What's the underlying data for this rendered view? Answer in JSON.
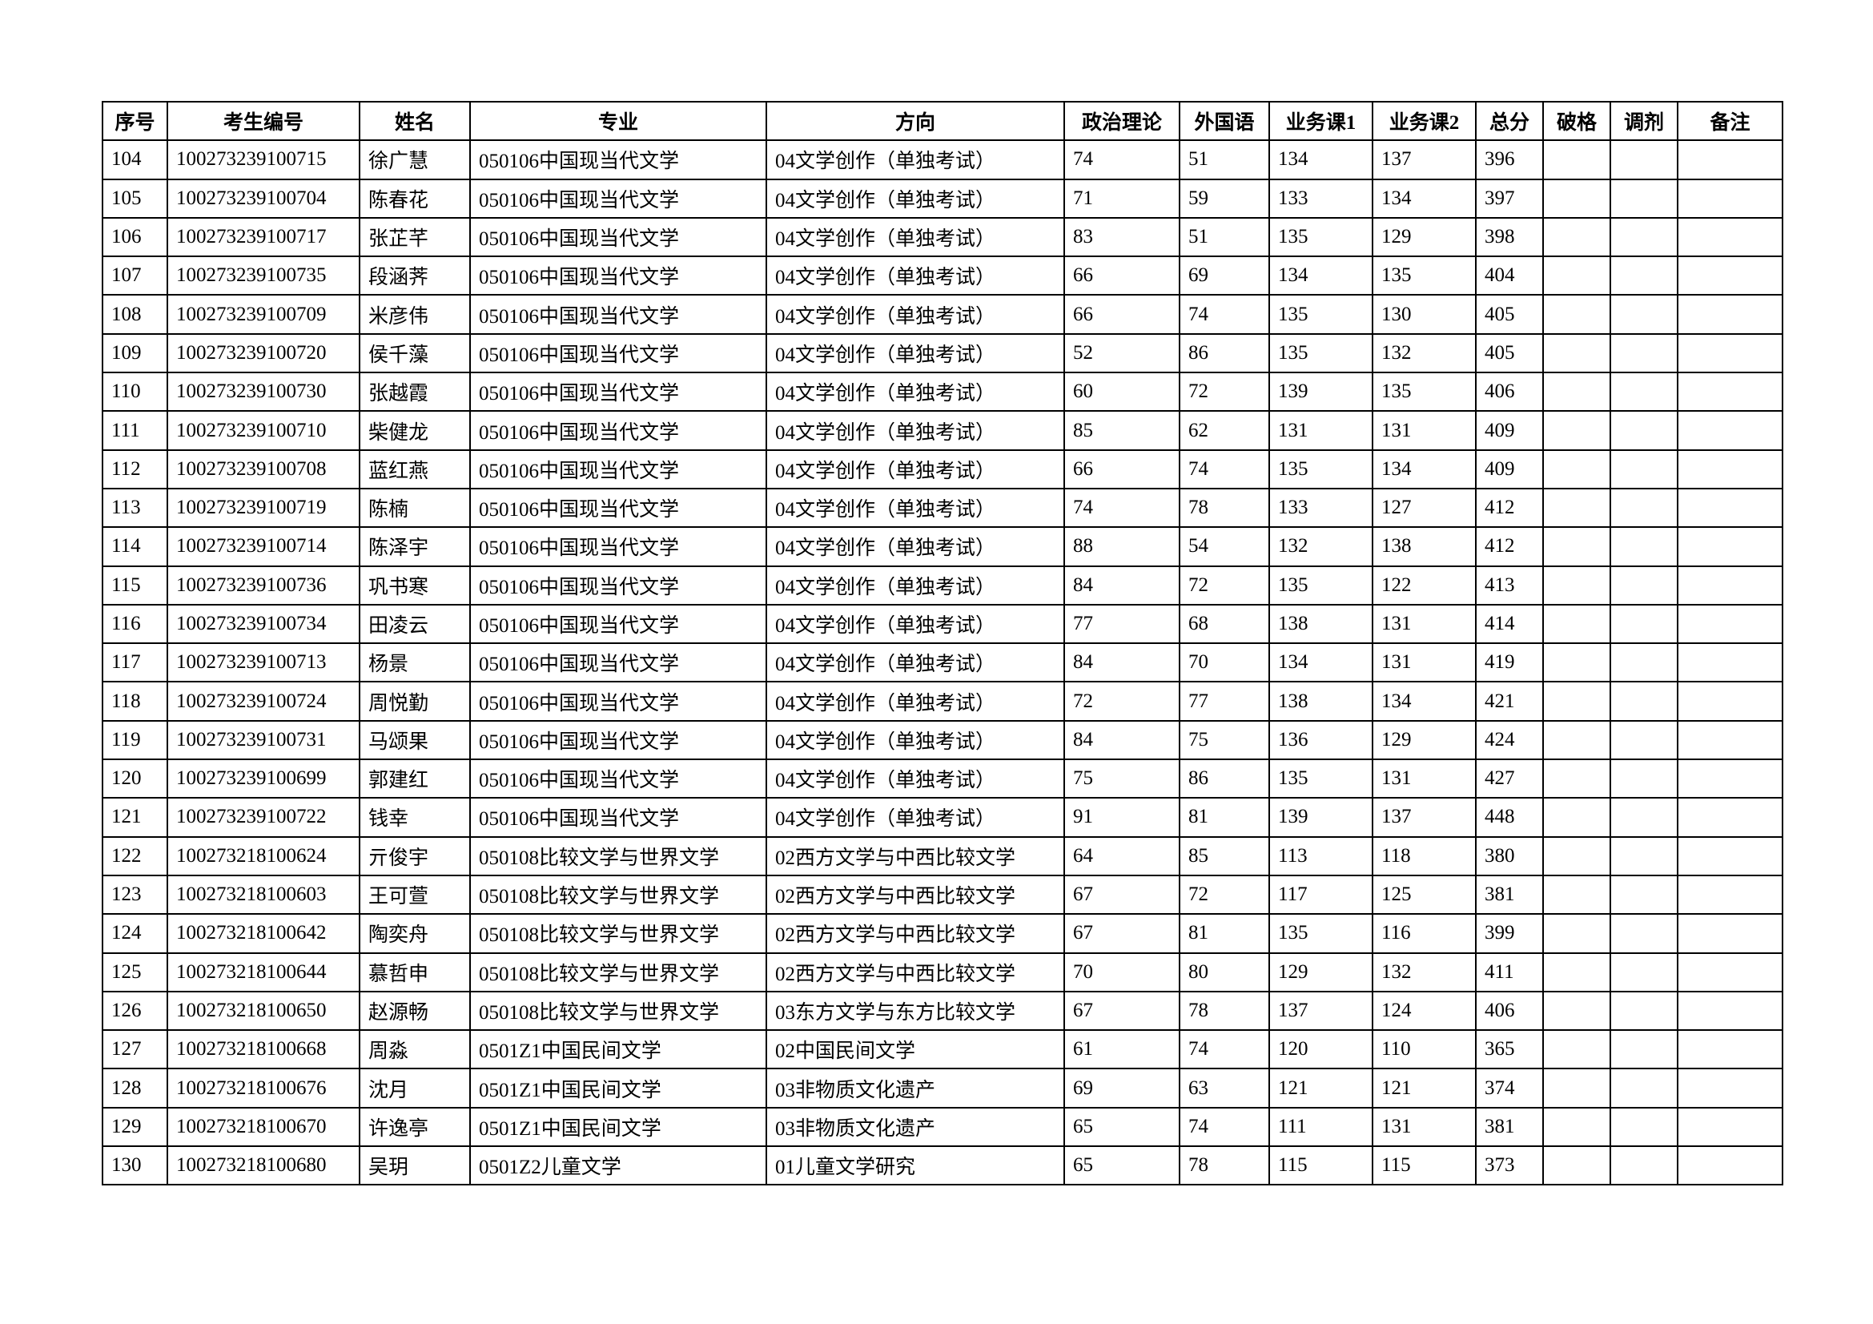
{
  "table": {
    "header": [
      "序号",
      "考生编号",
      "姓名",
      "专业",
      "方向",
      "政治理论",
      "外国语",
      "业务课1",
      "业务课2",
      "总分",
      "破格",
      "调剂",
      "备注"
    ],
    "rows": [
      [
        104,
        "100273239100715",
        "徐广慧",
        "050106中国现当代文学",
        "04文学创作（单独考试）",
        74,
        51,
        134,
        137,
        396
      ],
      [
        105,
        "100273239100704",
        "陈春花",
        "050106中国现当代文学",
        "04文学创作（单独考试）",
        71,
        59,
        133,
        134,
        397
      ],
      [
        106,
        "100273239100717",
        "张芷芊",
        "050106中国现当代文学",
        "04文学创作（单独考试）",
        83,
        51,
        135,
        129,
        398
      ],
      [
        107,
        "100273239100735",
        "段涵荠",
        "050106中国现当代文学",
        "04文学创作（单独考试）",
        66,
        69,
        134,
        135,
        404
      ],
      [
        108,
        "100273239100709",
        "米彦伟",
        "050106中国现当代文学",
        "04文学创作（单独考试）",
        66,
        74,
        135,
        130,
        405
      ],
      [
        109,
        "100273239100720",
        "侯千藻",
        "050106中国现当代文学",
        "04文学创作（单独考试）",
        52,
        86,
        135,
        132,
        405
      ],
      [
        110,
        "100273239100730",
        "张越霞",
        "050106中国现当代文学",
        "04文学创作（单独考试）",
        60,
        72,
        139,
        135,
        406
      ],
      [
        111,
        "100273239100710",
        "柴健龙",
        "050106中国现当代文学",
        "04文学创作（单独考试）",
        85,
        62,
        131,
        131,
        409
      ],
      [
        112,
        "100273239100708",
        "蓝红燕",
        "050106中国现当代文学",
        "04文学创作（单独考试）",
        66,
        74,
        135,
        134,
        409
      ],
      [
        113,
        "100273239100719",
        "陈楠",
        "050106中国现当代文学",
        "04文学创作（单独考试）",
        74,
        78,
        133,
        127,
        412
      ],
      [
        114,
        "100273239100714",
        "陈泽宇",
        "050106中国现当代文学",
        "04文学创作（单独考试）",
        88,
        54,
        132,
        138,
        412
      ],
      [
        115,
        "100273239100736",
        "巩书寒",
        "050106中国现当代文学",
        "04文学创作（单独考试）",
        84,
        72,
        135,
        122,
        413
      ],
      [
        116,
        "100273239100734",
        "田凌云",
        "050106中国现当代文学",
        "04文学创作（单独考试）",
        77,
        68,
        138,
        131,
        414
      ],
      [
        117,
        "100273239100713",
        "杨景",
        "050106中国现当代文学",
        "04文学创作（单独考试）",
        84,
        70,
        134,
        131,
        419
      ],
      [
        118,
        "100273239100724",
        "周悦勤",
        "050106中国现当代文学",
        "04文学创作（单独考试）",
        72,
        77,
        138,
        134,
        421
      ],
      [
        119,
        "100273239100731",
        "马颂果",
        "050106中国现当代文学",
        "04文学创作（单独考试）",
        84,
        75,
        136,
        129,
        424
      ],
      [
        120,
        "100273239100699",
        "郭建红",
        "050106中国现当代文学",
        "04文学创作（单独考试）",
        75,
        86,
        135,
        131,
        427
      ],
      [
        121,
        "100273239100722",
        "钱幸",
        "050106中国现当代文学",
        "04文学创作（单独考试）",
        91,
        81,
        139,
        137,
        448
      ],
      [
        122,
        "100273218100624",
        "亓俊宇",
        "050108比较文学与世界文学",
        "02西方文学与中西比较文学",
        64,
        85,
        113,
        118,
        380
      ],
      [
        123,
        "100273218100603",
        "王可萱",
        "050108比较文学与世界文学",
        "02西方文学与中西比较文学",
        67,
        72,
        117,
        125,
        381
      ],
      [
        124,
        "100273218100642",
        "陶奕舟",
        "050108比较文学与世界文学",
        "02西方文学与中西比较文学",
        67,
        81,
        135,
        116,
        399
      ],
      [
        125,
        "100273218100644",
        "慕哲申",
        "050108比较文学与世界文学",
        "02西方文学与中西比较文学",
        70,
        80,
        129,
        132,
        411
      ],
      [
        126,
        "100273218100650",
        "赵源畅",
        "050108比较文学与世界文学",
        "03东方文学与东方比较文学",
        67,
        78,
        137,
        124,
        406
      ],
      [
        127,
        "100273218100668",
        "周淼",
        "0501Z1中国民间文学",
        "02中国民间文学",
        61,
        74,
        120,
        110,
        365
      ],
      [
        128,
        "100273218100676",
        "沈月",
        "0501Z1中国民间文学",
        "03非物质文化遗产",
        69,
        63,
        121,
        121,
        374
      ],
      [
        129,
        "100273218100670",
        "许逸亭",
        "0501Z1中国民间文学",
        "03非物质文化遗产",
        65,
        74,
        111,
        131,
        381
      ],
      [
        130,
        "100273218100680",
        "吴玥",
        "0501Z2儿童文学",
        "01儿童文学研究",
        65,
        78,
        115,
        115,
        373
      ]
    ]
  }
}
